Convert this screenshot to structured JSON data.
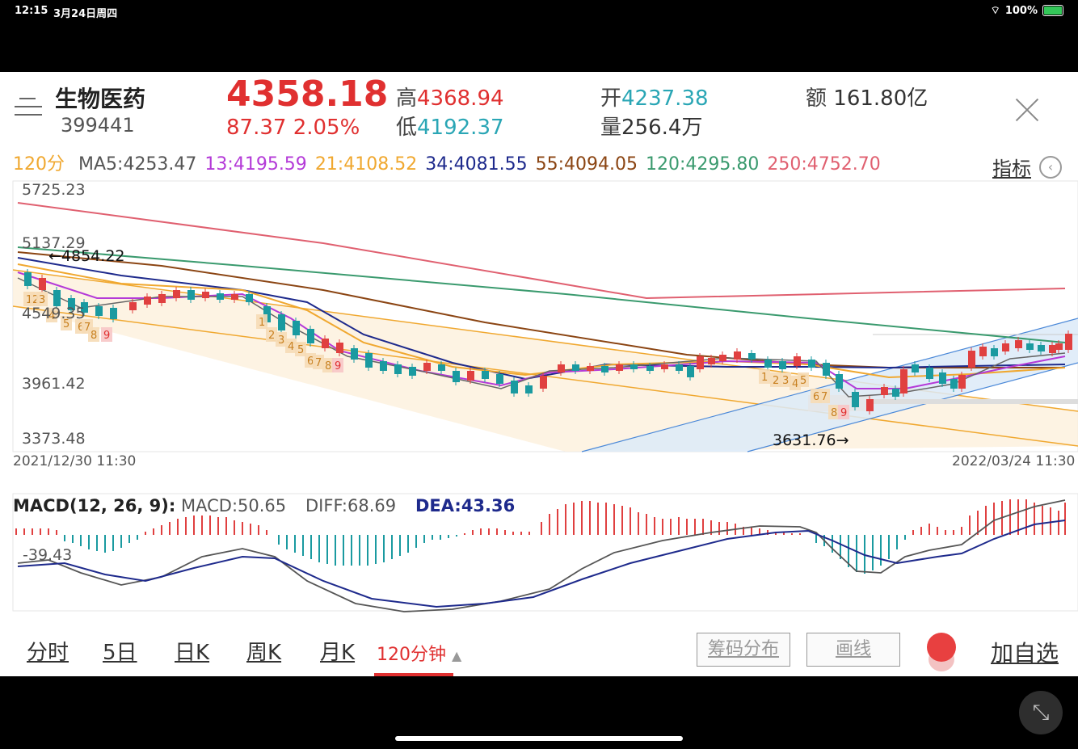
{
  "status_bar": {
    "time": "12:15",
    "date": "3月24日周四",
    "battery": "100%"
  },
  "header": {
    "name": "生物医药",
    "code": "399441",
    "price": "4358.18",
    "change": "87.37  2.05%",
    "high_label": "高",
    "high": "4368.94",
    "low_label": "低",
    "low": "4192.37",
    "open_label": "开",
    "open": "4237.38",
    "vol_label": "量",
    "vol": "256.4万",
    "amt_label": "额",
    "amt": "161.80亿"
  },
  "ma_row": {
    "period": "120分",
    "items": [
      {
        "text": "MA5:4253.47",
        "color": "#555555"
      },
      {
        "text": "13:4195.59",
        "color": "#b43ad8"
      },
      {
        "text": "21:4108.52",
        "color": "#f0a830"
      },
      {
        "text": "34:4081.55",
        "color": "#1e2a8c"
      },
      {
        "text": "55:4094.05",
        "color": "#8b4513"
      },
      {
        "text": "120:4295.80",
        "color": "#3a9a6e"
      },
      {
        "text": "250:4752.70",
        "color": "#e06070"
      }
    ],
    "indicator_label": "指标"
  },
  "chart_data": {
    "type": "candlestick",
    "y_ticks": [
      "5725.23",
      "5137.29",
      "4549.35",
      "3961.42",
      "3373.48"
    ],
    "ylim": [
      3373.48,
      5725.23
    ],
    "x_start": "2021/12/30 11:30",
    "x_end": "2022/03/24 11:30",
    "annotations": [
      {
        "text": "←4854.22"
      },
      {
        "text": "3631.76→"
      }
    ],
    "td_counts": [
      "1",
      "2",
      "3",
      "4",
      "5",
      "6",
      "7",
      "8",
      "9"
    ],
    "macd": {
      "label": "MACD(12, 26, 9):",
      "macd": "MACD:50.65",
      "diff": "DIFF:68.69",
      "dea": "DEA:43.36",
      "tick": "-39.43"
    }
  },
  "bottom_tabs": {
    "items": [
      "分时",
      "5日",
      "日K",
      "周K",
      "月K"
    ],
    "active": "120分钟",
    "chip_button": "筹码分布",
    "draw_button": "画线",
    "add_label": "加自选"
  }
}
